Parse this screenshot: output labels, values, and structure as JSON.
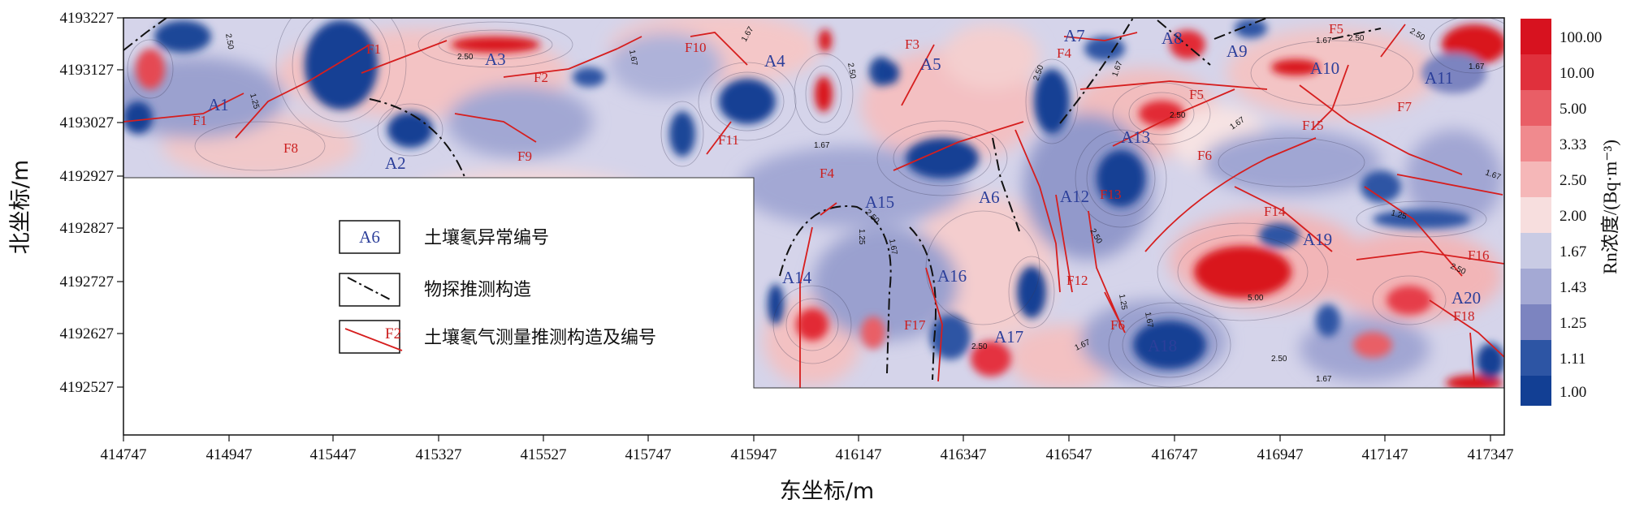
{
  "axes": {
    "x_title": "东坐标/m",
    "y_title": "北坐标/m",
    "x_ticks": [
      "414747",
      "414947",
      "415447",
      "415327",
      "415527",
      "415747",
      "415947",
      "416147",
      "416347",
      "416547",
      "416747",
      "416947",
      "417147",
      "417347"
    ],
    "y_ticks": [
      "4193227",
      "4193127",
      "4193027",
      "4192927",
      "4192827",
      "4192727",
      "4192627",
      "4192527"
    ]
  },
  "colorbar": {
    "title": "Rn浓度/(Bq·m⁻³)",
    "labels": [
      "100.00",
      "10.00",
      "5.00",
      "3.33",
      "2.50",
      "2.00",
      "1.67",
      "1.43",
      "1.25",
      "1.11",
      "1.00"
    ],
    "colors": [
      "#d7121f",
      "#e0303c",
      "#e95e66",
      "#f08a8e",
      "#f5b7b8",
      "#f7dede",
      "#c9cbe4",
      "#a4a9d4",
      "#7c84c0",
      "#2d55a4",
      "#123f94"
    ]
  },
  "legend": {
    "items": [
      {
        "sample": "A6",
        "label": "土壤氡异常编号"
      },
      {
        "sample": "",
        "label": "物探推测构造"
      },
      {
        "sample": "F2",
        "label": "土壤氡气测量推测构造及编号"
      }
    ]
  },
  "anomaly_labels": [
    "A1",
    "A2",
    "A3",
    "A4",
    "A5",
    "A6",
    "A7",
    "A8",
    "A9",
    "A10",
    "A11",
    "A12",
    "A13",
    "A14",
    "A15",
    "A16",
    "A17",
    "A18",
    "A19",
    "A20"
  ],
  "fault_labels": [
    "F1",
    "F1",
    "F2",
    "F3",
    "F4",
    "F4",
    "F5",
    "F5",
    "F6",
    "F6",
    "F7",
    "F8",
    "F9",
    "F10",
    "F11",
    "F12",
    "F13",
    "F14",
    "F15",
    "F16",
    "F17",
    "F18"
  ],
  "contour_labels": [
    "2.50",
    "1.25",
    "2.50",
    "1.67",
    "1.67",
    "2.50",
    "1.67",
    "2.50",
    "1.67",
    "2.50",
    "2.50",
    "1.67",
    "2.50",
    "5.00",
    "1.67",
    "1.67",
    "1.25",
    "2.50",
    "1.67",
    "2.50",
    "1.25",
    "2.50",
    "1.67",
    "2.50",
    "1.25",
    "1.67",
    "1.67",
    "2.50",
    "1.67"
  ]
}
